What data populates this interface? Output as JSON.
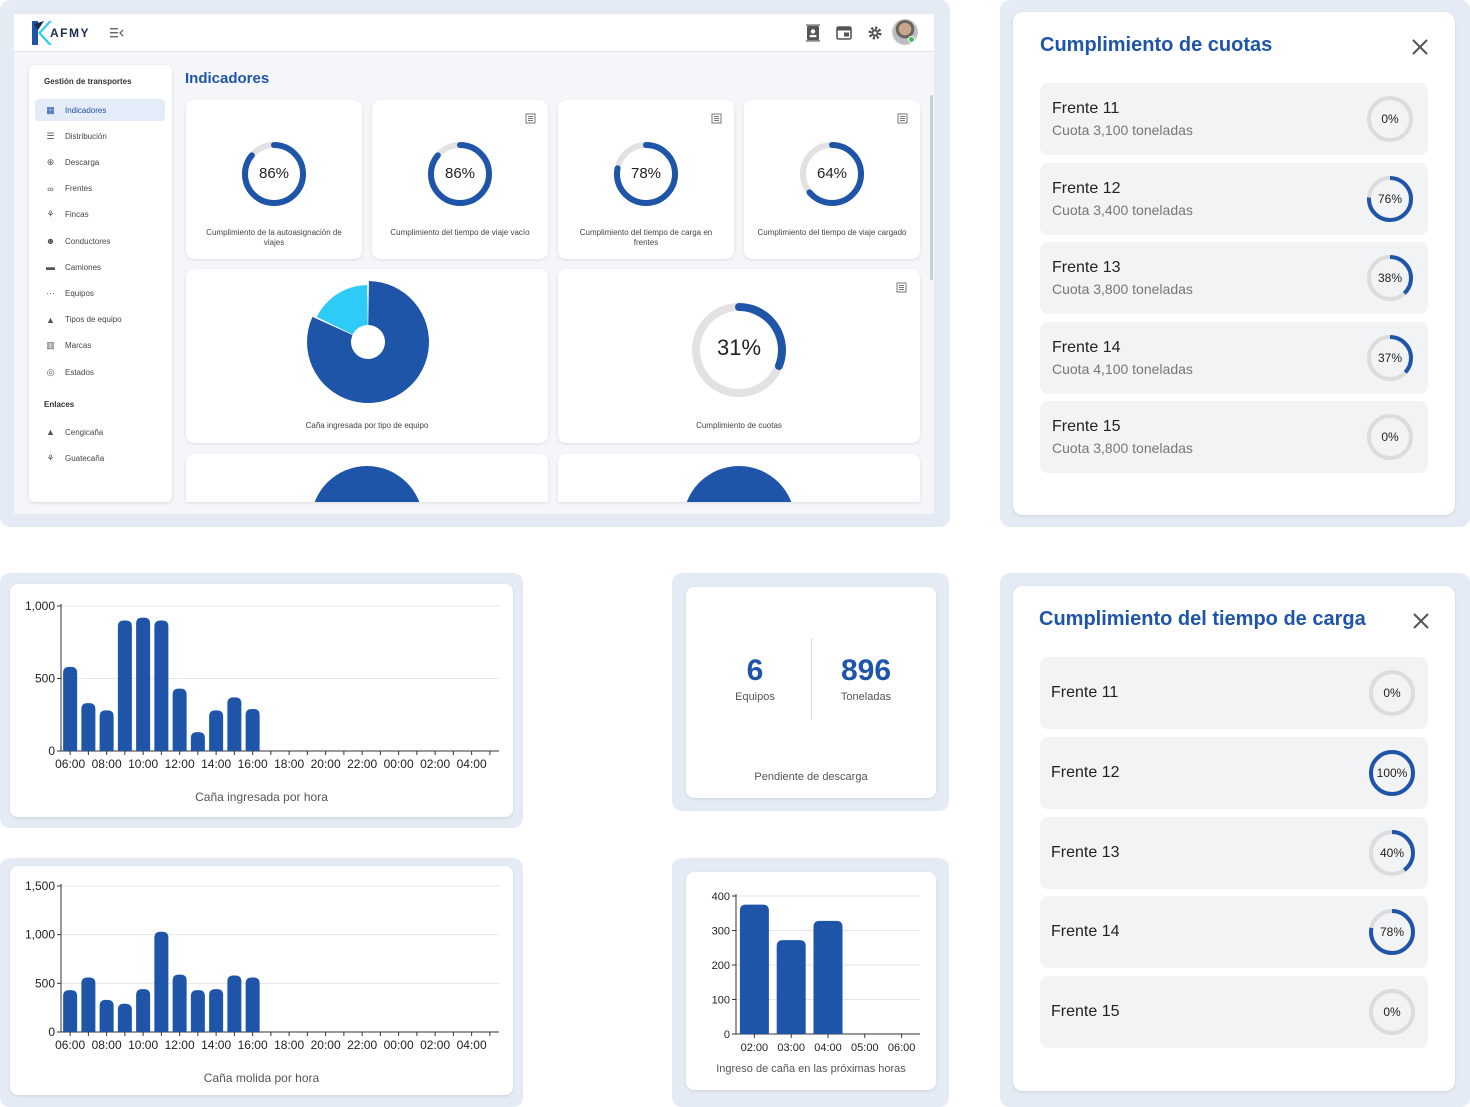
{
  "app": {
    "logo_text": "AFMY"
  },
  "sidebar": {
    "section1": "Gestión de transportes",
    "items": [
      {
        "label": "Indicadores",
        "icon": "dashboard-icon"
      },
      {
        "label": "Distribución",
        "icon": "list-icon"
      },
      {
        "label": "Descarga",
        "icon": "download-circle-icon"
      },
      {
        "label": "Frentes",
        "icon": "bicycle-icon"
      },
      {
        "label": "Fincas",
        "icon": "plant-icon"
      },
      {
        "label": "Conductores",
        "icon": "people-icon"
      },
      {
        "label": "Camiones",
        "icon": "truck-icon"
      },
      {
        "label": "Equipos",
        "icon": "dots-icon"
      },
      {
        "label": "Tipos de equipo",
        "icon": "shapes-icon"
      },
      {
        "label": "Marcas",
        "icon": "columns-icon"
      },
      {
        "label": "Estados",
        "icon": "status-icon"
      }
    ],
    "section2": "Enlaces",
    "links": [
      {
        "label": "Cengicaña",
        "icon": "mountain-icon"
      },
      {
        "label": "Guatecaña",
        "icon": "plant-icon"
      }
    ]
  },
  "page": {
    "title": "Indicadores"
  },
  "kpis": [
    {
      "value": 86,
      "text": "86%",
      "label": "Cumplimiento de la autoasignación de viajes"
    },
    {
      "value": 86,
      "text": "86%",
      "label": "Cumplimiento del tiempo de viaje vacío"
    },
    {
      "value": 78,
      "text": "78%",
      "label": "Cumplimiento del tiempo de carga en frentes"
    },
    {
      "value": 64,
      "text": "64%",
      "label": "Cumplimiento del tiempo de viaje cargado"
    }
  ],
  "pie_card": {
    "label": "Caña ingresada por tipo de equipo"
  },
  "quota_card": {
    "value": 31,
    "text": "31%",
    "label": "Cumplimiento de cuotas"
  },
  "colors": {
    "primary": "#1f55a8",
    "pie_light": "#2ecbf7",
    "track": "#e2e2e2"
  },
  "modal_quotas": {
    "title": "Cumplimiento de cuotas",
    "rows": [
      {
        "name": "Frente 11",
        "sub": "Cuota 3,100 toneladas",
        "value": 0,
        "text": "0%"
      },
      {
        "name": "Frente 12",
        "sub": "Cuota 3,400 toneladas",
        "value": 76,
        "text": "76%"
      },
      {
        "name": "Frente 13",
        "sub": "Cuota 3,800 toneladas",
        "value": 38,
        "text": "38%"
      },
      {
        "name": "Frente 14",
        "sub": "Cuota 4,100 toneladas",
        "value": 37,
        "text": "37%"
      },
      {
        "name": "Frente 15",
        "sub": "Cuota 3,800 toneladas",
        "value": 0,
        "text": "0%"
      }
    ]
  },
  "modal_load": {
    "title": "Cumplimiento del tiempo de carga",
    "rows": [
      {
        "name": "Frente 11",
        "value": 0,
        "text": "0%"
      },
      {
        "name": "Frente 12",
        "value": 100,
        "text": "100%"
      },
      {
        "name": "Frente 13",
        "value": 40,
        "text": "40%"
      },
      {
        "name": "Frente 14",
        "value": 78,
        "text": "78%"
      },
      {
        "name": "Frente 15",
        "value": 0,
        "text": "0%"
      }
    ]
  },
  "pending": {
    "equipos_value": "6",
    "equipos_label": "Equipos",
    "ton_value": "896",
    "ton_label": "Toneladas",
    "caption": "Pendiente de descarga"
  },
  "chart_data": [
    {
      "type": "bar",
      "title": "Caña ingresada por hora",
      "categories": [
        "06:00",
        "07:00",
        "08:00",
        "09:00",
        "10:00",
        "11:00",
        "12:00",
        "13:00",
        "14:00",
        "15:00",
        "16:00",
        "17:00",
        "18:00",
        "19:00",
        "20:00",
        "21:00",
        "22:00",
        "23:00",
        "00:00",
        "01:00",
        "02:00",
        "03:00",
        "04:00",
        "05:00"
      ],
      "tick_labels": [
        "06:00",
        "08:00",
        "10:00",
        "12:00",
        "14:00",
        "16:00",
        "18:00",
        "20:00",
        "22:00",
        "00:00",
        "02:00",
        "04:00"
      ],
      "values": [
        580,
        330,
        280,
        900,
        920,
        900,
        430,
        130,
        280,
        370,
        290,
        0,
        0,
        0,
        0,
        0,
        0,
        0,
        0,
        0,
        0,
        0,
        0,
        0
      ],
      "yticks": [
        "0",
        "500",
        "1,000"
      ],
      "ylim": [
        0,
        1000
      ]
    },
    {
      "type": "bar",
      "title": "Caña molida por hora",
      "categories": [
        "06:00",
        "07:00",
        "08:00",
        "09:00",
        "10:00",
        "11:00",
        "12:00",
        "13:00",
        "14:00",
        "15:00",
        "16:00",
        "17:00",
        "18:00",
        "19:00",
        "20:00",
        "21:00",
        "22:00",
        "23:00",
        "00:00",
        "01:00",
        "02:00",
        "03:00",
        "04:00",
        "05:00"
      ],
      "tick_labels": [
        "06:00",
        "08:00",
        "10:00",
        "12:00",
        "14:00",
        "16:00",
        "18:00",
        "20:00",
        "22:00",
        "00:00",
        "02:00",
        "04:00"
      ],
      "values": [
        430,
        560,
        330,
        290,
        440,
        1030,
        590,
        430,
        440,
        580,
        560,
        0,
        0,
        0,
        0,
        0,
        0,
        0,
        0,
        0,
        0,
        0,
        0,
        0
      ],
      "yticks": [
        "0",
        "500",
        "1,000",
        "1,500"
      ],
      "ylim": [
        0,
        1500
      ]
    },
    {
      "type": "bar",
      "title": "Ingreso de caña en las próximas horas",
      "categories": [
        "02:00",
        "03:00",
        "04:00",
        "05:00",
        "06:00"
      ],
      "values": [
        375,
        272,
        328,
        0,
        0
      ],
      "yticks": [
        "0",
        "100",
        "200",
        "300",
        "400"
      ],
      "ylim": [
        0,
        400
      ]
    },
    {
      "type": "pie",
      "title": "Caña ingresada por tipo de equipo",
      "values": [
        82,
        18
      ]
    }
  ]
}
